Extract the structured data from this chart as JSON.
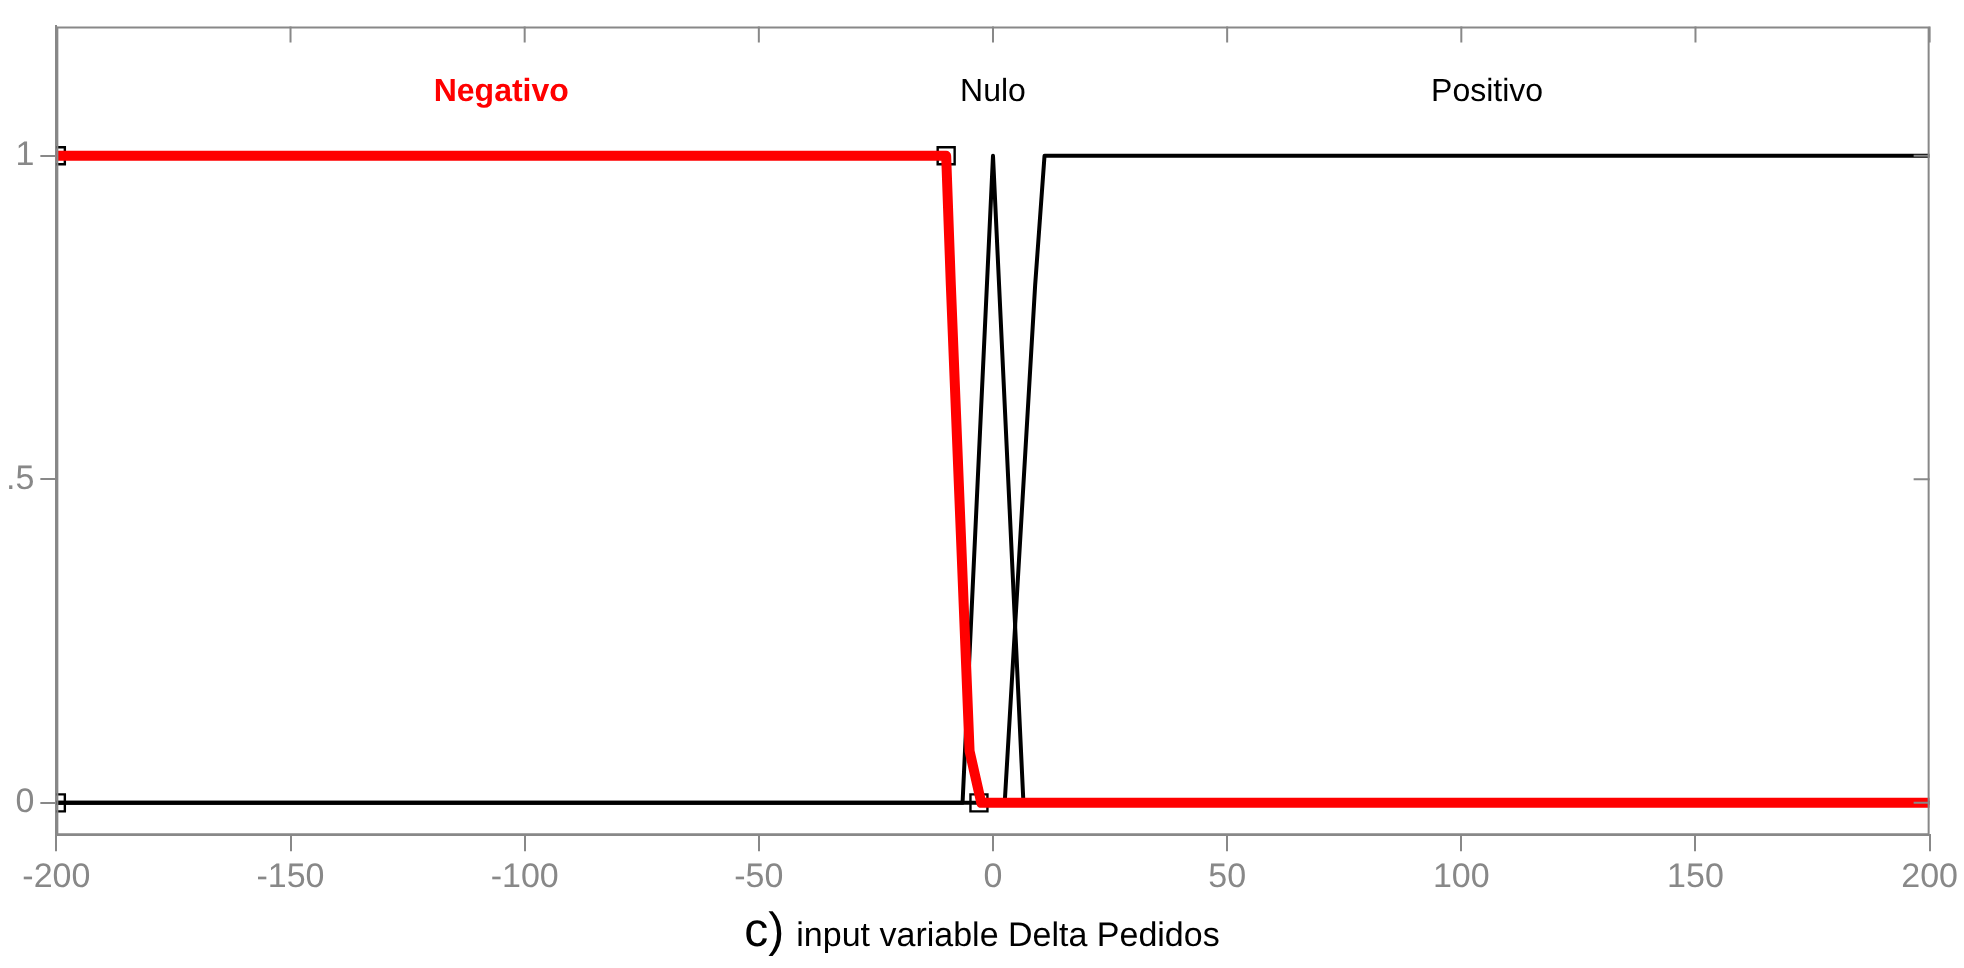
{
  "chart_data": {
    "type": "line",
    "xlabel": "input variable Delta Pedidos",
    "annotations": [
      "c)"
    ],
    "xlim": [
      -200,
      200
    ],
    "xticks": [
      -200,
      -150,
      -100,
      -50,
      0,
      50,
      100,
      150,
      200
    ],
    "ylim": [
      -0.05,
      1.2
    ],
    "yticks": [
      0,
      {
        "value": 0.5,
        "label": ".5"
      },
      1
    ],
    "grid": false,
    "legend": false,
    "marker": "none",
    "line_style": "solid",
    "series": [
      {
        "name": "Negativo",
        "color": "#ff0000",
        "x": [
          -200,
          -10,
          -9,
          -5,
          -2.5,
          200
        ],
        "values": [
          1,
          1,
          0.8,
          0.08,
          0,
          0
        ]
      },
      {
        "name": "Nulo",
        "color": "#000000",
        "x": [
          -200,
          -6.5,
          0,
          6.5,
          200
        ],
        "values": [
          0,
          0,
          1,
          0,
          0
        ]
      },
      {
        "name": "Positivo",
        "color": "#000000",
        "x": [
          -200,
          2.5,
          9,
          11,
          200
        ],
        "values": [
          0,
          0,
          0.8,
          1,
          1
        ]
      },
      {
        "type": "scatter",
        "marker": "square",
        "color": "#000000",
        "x": [
          -200,
          -200,
          -10,
          -3
        ],
        "values": [
          1,
          0,
          1,
          0
        ]
      }
    ]
  }
}
